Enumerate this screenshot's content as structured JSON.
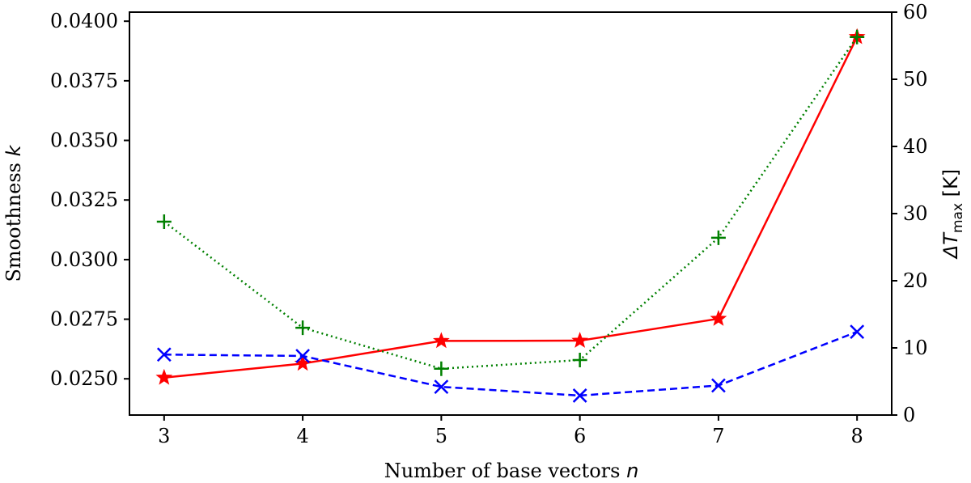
{
  "chart_data": {
    "type": "line",
    "x": [
      3,
      4,
      5,
      6,
      7,
      8
    ],
    "xticks": [
      3,
      4,
      5,
      6,
      7,
      8
    ],
    "xlim": [
      2.75,
      8.25
    ],
    "xlabel": "Number of base vectors ",
    "xlabel_var": "n",
    "ylabel": "Smoothness ",
    "ylabel_var": "k",
    "ylim": [
      0.02348,
      0.04038
    ],
    "yticks": [
      0.025,
      0.0275,
      0.03,
      0.0325,
      0.035,
      0.0375,
      0.04
    ],
    "ytick_labels": [
      "0.0250",
      "0.0275",
      "0.0300",
      "0.0325",
      "0.0350",
      "0.0375",
      "0.0400"
    ],
    "y2label_prefix": "ΔT",
    "y2label_sub": "max",
    "y2label_suffix": " [K]",
    "y2lim": [
      0,
      60
    ],
    "y2ticks": [
      0,
      10,
      20,
      30,
      40,
      50,
      60
    ],
    "grid": false,
    "series": [
      {
        "axis": "left",
        "color": "#ff0000",
        "line_style": "solid",
        "marker": "star",
        "values": [
          0.02505,
          0.02564,
          0.02659,
          0.0266,
          0.02752,
          0.03934
        ]
      },
      {
        "axis": "right",
        "color": "#0000ff",
        "line_style": "dashed",
        "marker": "x",
        "values": [
          9.0,
          8.8,
          4.2,
          2.9,
          4.4,
          12.4
        ]
      },
      {
        "axis": "right",
        "color": "#008000",
        "line_style": "dotted",
        "marker": "plus",
        "values": [
          28.8,
          13.0,
          6.9,
          8.2,
          26.4,
          56.3
        ]
      }
    ]
  }
}
